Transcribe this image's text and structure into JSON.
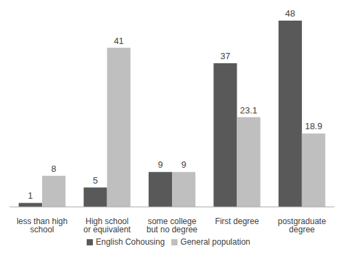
{
  "chart_data": {
    "type": "bar",
    "categories": [
      "less than high school",
      "High school or equivalent",
      "some college but no degree",
      "First degree",
      "postgraduate degree"
    ],
    "series": [
      {
        "name": "English Cohousing",
        "color": "#595959",
        "values": [
          1,
          5,
          9,
          37,
          48
        ]
      },
      {
        "name": "General population",
        "color": "#bfbfbf",
        "values": [
          8,
          41,
          9,
          23.1,
          18.9
        ]
      }
    ],
    "ylim": [
      0,
      48
    ],
    "grid": false,
    "legend": "bottom",
    "data_labels": true,
    "tick_labels": "x"
  }
}
